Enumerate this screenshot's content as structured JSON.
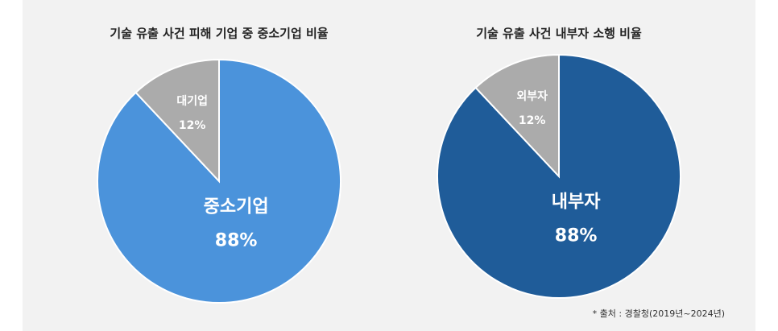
{
  "chart_data": [
    {
      "type": "pie",
      "title": "기술 유출 사건 피해 기업 중 중소기업 비율",
      "categories": [
        "중소기업",
        "대기업"
      ],
      "values": [
        88,
        12
      ],
      "value_labels": [
        "88%",
        "12%"
      ],
      "colors": [
        "#4b93db",
        "#ababab"
      ]
    },
    {
      "type": "pie",
      "title": "기술 유출 사건 내부자 소행 비율",
      "categories": [
        "내부자",
        "외부자"
      ],
      "values": [
        88,
        12
      ],
      "value_labels": [
        "88%",
        "12%"
      ],
      "colors": [
        "#1f5c99",
        "#ababab"
      ]
    }
  ],
  "source": "* 출처 : 경찰청(2019년~2024년)"
}
